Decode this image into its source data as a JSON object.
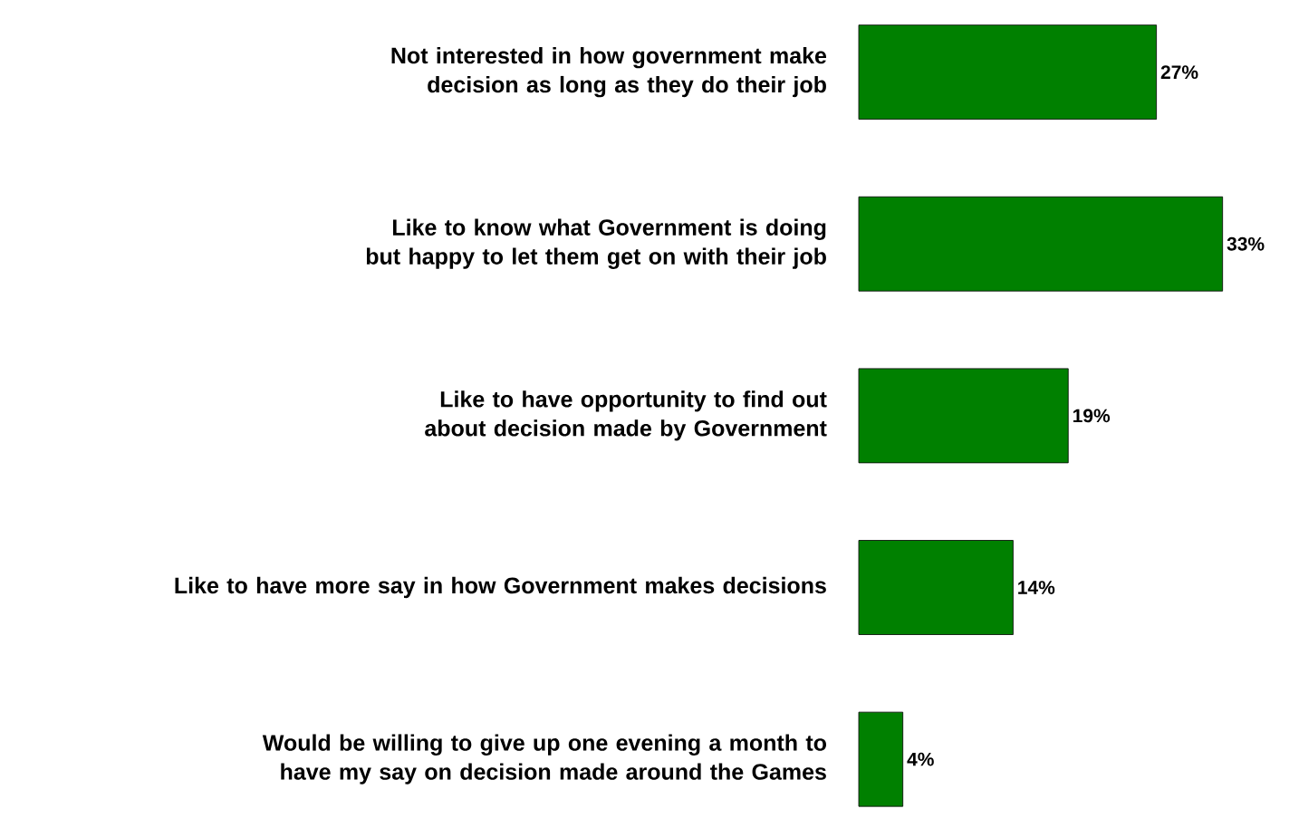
{
  "chart_data": {
    "type": "bar",
    "orientation": "horizontal",
    "categories": [
      "Not interested in how government make decision as long as they do their job",
      "Like to know what Government is doing but happy to let them get on with their job",
      "Like to have opportunity to find out about decision made by Government",
      "Like to have more say in how Government makes decisions",
      "Would be willing to give up one evening a month to have my say on decision made around the Games"
    ],
    "values": [
      27,
      33,
      19,
      14,
      4
    ],
    "value_labels": [
      "27%",
      "33%",
      "19%",
      "14%",
      "4%"
    ],
    "color": "#008000"
  }
}
